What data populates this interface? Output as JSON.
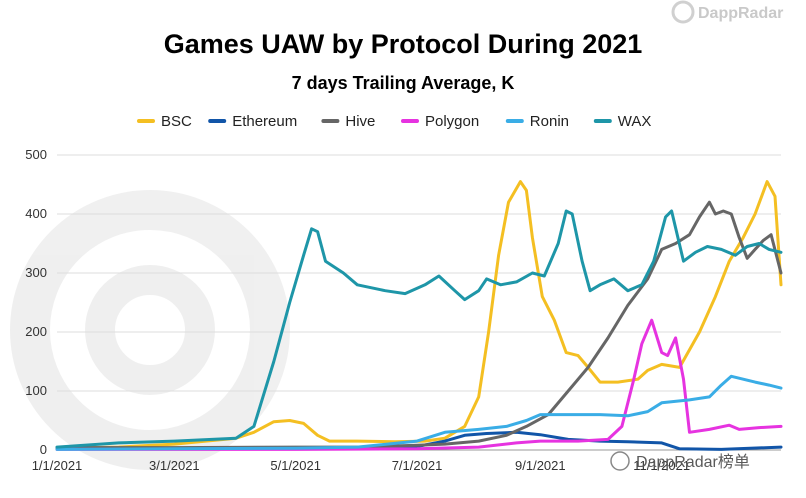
{
  "watermarks": {
    "top_right": "DappRadar",
    "bottom_right": "DappRadar榜单"
  },
  "chart_data": {
    "type": "line",
    "title": "Games UAW by Protocol During 2021",
    "subtitle": "7 days Trailing Average, K",
    "xlabel": "",
    "ylabel": "",
    "ylim": [
      0,
      500
    ],
    "yticks": [
      0,
      100,
      200,
      300,
      400,
      500
    ],
    "x_range": [
      "2021-01-01",
      "2021-12-31"
    ],
    "xticks": [
      {
        "date": "2021-01-01",
        "label": "1/1/2021"
      },
      {
        "date": "2021-03-01",
        "label": "3/1/2021"
      },
      {
        "date": "2021-05-01",
        "label": "5/1/2021"
      },
      {
        "date": "2021-07-01",
        "label": "7/1/2021"
      },
      {
        "date": "2021-09-01",
        "label": "9/1/2021"
      },
      {
        "date": "2021-11-01",
        "label": "11/1/2021"
      }
    ],
    "grid": "horizontal",
    "legend_position": "top",
    "series": [
      {
        "name": "BSC",
        "color": "#F4BF22",
        "points": [
          [
            "2021-01-01",
            3
          ],
          [
            "2021-02-01",
            5
          ],
          [
            "2021-03-01",
            10
          ],
          [
            "2021-04-01",
            20
          ],
          [
            "2021-04-10",
            30
          ],
          [
            "2021-04-20",
            48
          ],
          [
            "2021-04-28",
            50
          ],
          [
            "2021-05-05",
            45
          ],
          [
            "2021-05-12",
            25
          ],
          [
            "2021-05-18",
            15
          ],
          [
            "2021-06-01",
            15
          ],
          [
            "2021-06-20",
            14
          ],
          [
            "2021-07-05",
            15
          ],
          [
            "2021-07-15",
            20
          ],
          [
            "2021-07-25",
            40
          ],
          [
            "2021-08-01",
            90
          ],
          [
            "2021-08-06",
            200
          ],
          [
            "2021-08-11",
            330
          ],
          [
            "2021-08-16",
            420
          ],
          [
            "2021-08-22",
            455
          ],
          [
            "2021-08-25",
            440
          ],
          [
            "2021-08-28",
            360
          ],
          [
            "2021-09-02",
            260
          ],
          [
            "2021-09-08",
            220
          ],
          [
            "2021-09-14",
            165
          ],
          [
            "2021-09-20",
            160
          ],
          [
            "2021-09-25",
            140
          ],
          [
            "2021-10-01",
            115
          ],
          [
            "2021-10-10",
            115
          ],
          [
            "2021-10-20",
            120
          ],
          [
            "2021-10-25",
            135
          ],
          [
            "2021-11-01",
            145
          ],
          [
            "2021-11-10",
            140
          ],
          [
            "2021-11-20",
            200
          ],
          [
            "2021-11-28",
            260
          ],
          [
            "2021-12-05",
            320
          ],
          [
            "2021-12-12",
            360
          ],
          [
            "2021-12-18",
            400
          ],
          [
            "2021-12-24",
            455
          ],
          [
            "2021-12-28",
            430
          ],
          [
            "2021-12-31",
            280
          ]
        ]
      },
      {
        "name": "Ethereum",
        "color": "#1155A8",
        "points": [
          [
            "2021-01-01",
            2
          ],
          [
            "2021-03-01",
            2
          ],
          [
            "2021-05-01",
            2
          ],
          [
            "2021-06-15",
            3
          ],
          [
            "2021-07-01",
            6
          ],
          [
            "2021-07-15",
            15
          ],
          [
            "2021-07-25",
            25
          ],
          [
            "2021-08-05",
            28
          ],
          [
            "2021-08-20",
            30
          ],
          [
            "2021-09-01",
            26
          ],
          [
            "2021-09-15",
            18
          ],
          [
            "2021-10-01",
            15
          ],
          [
            "2021-10-15",
            14
          ],
          [
            "2021-11-01",
            12
          ],
          [
            "2021-11-10",
            2
          ],
          [
            "2021-12-01",
            1
          ],
          [
            "2021-12-31",
            5
          ]
        ]
      },
      {
        "name": "Hive",
        "color": "#666666",
        "points": [
          [
            "2021-01-01",
            4
          ],
          [
            "2021-03-01",
            4
          ],
          [
            "2021-05-01",
            5
          ],
          [
            "2021-06-01",
            5
          ],
          [
            "2021-07-01",
            8
          ],
          [
            "2021-07-15",
            10
          ],
          [
            "2021-08-01",
            15
          ],
          [
            "2021-08-15",
            25
          ],
          [
            "2021-08-25",
            40
          ],
          [
            "2021-09-05",
            60
          ],
          [
            "2021-09-15",
            100
          ],
          [
            "2021-09-25",
            140
          ],
          [
            "2021-10-05",
            190
          ],
          [
            "2021-10-15",
            245
          ],
          [
            "2021-10-25",
            290
          ],
          [
            "2021-11-01",
            340
          ],
          [
            "2021-11-08",
            350
          ],
          [
            "2021-11-15",
            365
          ],
          [
            "2021-11-20",
            395
          ],
          [
            "2021-11-25",
            420
          ],
          [
            "2021-11-28",
            400
          ],
          [
            "2021-12-02",
            405
          ],
          [
            "2021-12-06",
            400
          ],
          [
            "2021-12-10",
            360
          ],
          [
            "2021-12-14",
            325
          ],
          [
            "2021-12-18",
            340
          ],
          [
            "2021-12-22",
            355
          ],
          [
            "2021-12-26",
            365
          ],
          [
            "2021-12-31",
            300
          ]
        ]
      },
      {
        "name": "Polygon",
        "color": "#E633E0",
        "points": [
          [
            "2021-01-01",
            1
          ],
          [
            "2021-03-01",
            1
          ],
          [
            "2021-05-01",
            1
          ],
          [
            "2021-07-01",
            2
          ],
          [
            "2021-08-01",
            5
          ],
          [
            "2021-08-20",
            12
          ],
          [
            "2021-09-01",
            15
          ],
          [
            "2021-09-20",
            15
          ],
          [
            "2021-10-05",
            18
          ],
          [
            "2021-10-12",
            40
          ],
          [
            "2021-10-18",
            120
          ],
          [
            "2021-10-22",
            180
          ],
          [
            "2021-10-27",
            220
          ],
          [
            "2021-11-01",
            165
          ],
          [
            "2021-11-04",
            160
          ],
          [
            "2021-11-08",
            190
          ],
          [
            "2021-11-12",
            120
          ],
          [
            "2021-11-15",
            30
          ],
          [
            "2021-11-25",
            35
          ],
          [
            "2021-12-05",
            42
          ],
          [
            "2021-12-10",
            35
          ],
          [
            "2021-12-20",
            38
          ],
          [
            "2021-12-31",
            40
          ]
        ]
      },
      {
        "name": "Ronin",
        "color": "#3AADE6",
        "points": [
          [
            "2021-01-01",
            1
          ],
          [
            "2021-03-01",
            2
          ],
          [
            "2021-05-01",
            3
          ],
          [
            "2021-06-01",
            5
          ],
          [
            "2021-07-01",
            15
          ],
          [
            "2021-07-15",
            30
          ],
          [
            "2021-08-01",
            35
          ],
          [
            "2021-08-15",
            40
          ],
          [
            "2021-08-25",
            50
          ],
          [
            "2021-09-01",
            60
          ],
          [
            "2021-09-15",
            60
          ],
          [
            "2021-10-01",
            60
          ],
          [
            "2021-10-15",
            58
          ],
          [
            "2021-10-25",
            65
          ],
          [
            "2021-11-01",
            80
          ],
          [
            "2021-11-15",
            85
          ],
          [
            "2021-11-25",
            90
          ],
          [
            "2021-12-01",
            110
          ],
          [
            "2021-12-06",
            125
          ],
          [
            "2021-12-12",
            120
          ],
          [
            "2021-12-18",
            115
          ],
          [
            "2021-12-25",
            110
          ],
          [
            "2021-12-31",
            105
          ]
        ]
      },
      {
        "name": "WAX",
        "color": "#1E96A8",
        "points": [
          [
            "2021-01-01",
            5
          ],
          [
            "2021-02-01",
            12
          ],
          [
            "2021-03-01",
            15
          ],
          [
            "2021-04-01",
            20
          ],
          [
            "2021-04-10",
            40
          ],
          [
            "2021-04-20",
            150
          ],
          [
            "2021-04-28",
            250
          ],
          [
            "2021-05-05",
            330
          ],
          [
            "2021-05-09",
            375
          ],
          [
            "2021-05-12",
            370
          ],
          [
            "2021-05-16",
            320
          ],
          [
            "2021-05-25",
            300
          ],
          [
            "2021-06-01",
            280
          ],
          [
            "2021-06-15",
            270
          ],
          [
            "2021-06-25",
            265
          ],
          [
            "2021-07-05",
            280
          ],
          [
            "2021-07-12",
            295
          ],
          [
            "2021-07-20",
            270
          ],
          [
            "2021-07-25",
            255
          ],
          [
            "2021-08-01",
            270
          ],
          [
            "2021-08-05",
            290
          ],
          [
            "2021-08-12",
            280
          ],
          [
            "2021-08-20",
            285
          ],
          [
            "2021-08-28",
            300
          ],
          [
            "2021-09-03",
            295
          ],
          [
            "2021-09-10",
            350
          ],
          [
            "2021-09-14",
            405
          ],
          [
            "2021-09-17",
            400
          ],
          [
            "2021-09-22",
            320
          ],
          [
            "2021-09-26",
            270
          ],
          [
            "2021-10-01",
            280
          ],
          [
            "2021-10-08",
            290
          ],
          [
            "2021-10-15",
            270
          ],
          [
            "2021-10-22",
            280
          ],
          [
            "2021-10-28",
            320
          ],
          [
            "2021-11-03",
            395
          ],
          [
            "2021-11-06",
            405
          ],
          [
            "2021-11-12",
            320
          ],
          [
            "2021-11-18",
            335
          ],
          [
            "2021-11-24",
            345
          ],
          [
            "2021-12-01",
            340
          ],
          [
            "2021-12-08",
            330
          ],
          [
            "2021-12-14",
            345
          ],
          [
            "2021-12-20",
            350
          ],
          [
            "2021-12-25",
            340
          ],
          [
            "2021-12-31",
            335
          ]
        ]
      }
    ]
  }
}
